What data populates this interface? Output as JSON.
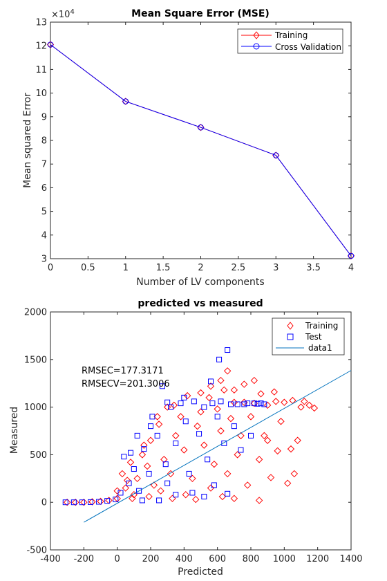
{
  "chart_data": [
    {
      "type": "line",
      "title": "Mean Square Error (MSE)",
      "xlabel": "Number of LV components",
      "ylabel": "Mean squared Error",
      "y_exponent_label": "×10",
      "y_exponent_power": "4",
      "xlim": [
        0,
        4
      ],
      "ylim": [
        3,
        13
      ],
      "xticks": [
        0,
        0.5,
        1,
        1.5,
        2,
        2.5,
        3,
        3.5,
        4
      ],
      "xtick_labels": [
        "0",
        "0.5",
        "1",
        "1.5",
        "2",
        "2.5",
        "3",
        "3.5",
        "4"
      ],
      "yticks": [
        3,
        4,
        5,
        6,
        7,
        8,
        9,
        10,
        11,
        12,
        13
      ],
      "ytick_labels": [
        "3",
        "4",
        "5",
        "6",
        "7",
        "8",
        "9",
        "10",
        "11",
        "12",
        "13"
      ],
      "x": [
        0,
        1,
        2,
        3,
        4
      ],
      "series": [
        {
          "name": "Training",
          "values": [
            12.05,
            9.65,
            8.55,
            7.37,
            3.12
          ],
          "color": "#ff0000",
          "marker": "diamond"
        },
        {
          "name": "Cross Validation",
          "values": [
            12.05,
            9.65,
            8.55,
            7.37,
            3.12
          ],
          "color": "#0000ff",
          "marker": "circle"
        }
      ],
      "grid": false,
      "legend_position": "top-right"
    },
    {
      "type": "scatter",
      "title": "predicted vs measured",
      "xlabel": "Predicted",
      "ylabel": "Measured",
      "xlim": [
        -400,
        1400
      ],
      "ylim": [
        -500,
        2000
      ],
      "xticks": [
        -400,
        -200,
        0,
        200,
        400,
        600,
        800,
        1000,
        1200,
        1400
      ],
      "xtick_labels": [
        "-400",
        "-200",
        "0",
        "200",
        "400",
        "600",
        "800",
        "1000",
        "1200",
        "1400"
      ],
      "yticks": [
        -500,
        0,
        500,
        1000,
        1500,
        2000
      ],
      "ytick_labels": [
        "-500",
        "0",
        "500",
        "1000",
        "1500",
        "2000"
      ],
      "annotations": [
        "RMSEC=177.3171",
        "RMSECV=201.3006"
      ],
      "series": [
        {
          "name": "Training",
          "color": "#ff0000",
          "marker": "diamond",
          "points": [
            [
              -300,
              0
            ],
            [
              -250,
              0
            ],
            [
              -200,
              0
            ],
            [
              -150,
              5
            ],
            [
              -100,
              10
            ],
            [
              -50,
              20
            ],
            [
              0,
              40
            ],
            [
              0,
              120
            ],
            [
              30,
              300
            ],
            [
              50,
              150
            ],
            [
              80,
              420
            ],
            [
              100,
              80
            ],
            [
              120,
              250
            ],
            [
              150,
              500
            ],
            [
              180,
              380
            ],
            [
              200,
              650
            ],
            [
              220,
              180
            ],
            [
              250,
              820
            ],
            [
              280,
              450
            ],
            [
              300,
              1000
            ],
            [
              320,
              300
            ],
            [
              350,
              700
            ],
            [
              380,
              900
            ],
            [
              400,
              550
            ],
            [
              420,
              1120
            ],
            [
              450,
              250
            ],
            [
              480,
              800
            ],
            [
              500,
              950
            ],
            [
              520,
              600
            ],
            [
              550,
              1100
            ],
            [
              580,
              400
            ],
            [
              600,
              980
            ],
            [
              620,
              750
            ],
            [
              640,
              1180
            ],
            [
              660,
              300
            ],
            [
              680,
              880
            ],
            [
              700,
              1050
            ],
            [
              720,
              500
            ],
            [
              740,
              700
            ],
            [
              760,
              1050
            ],
            [
              780,
              180
            ],
            [
              800,
              900
            ],
            [
              820,
              1040
            ],
            [
              850,
              450
            ],
            [
              880,
              700
            ],
            [
              900,
              1020
            ],
            [
              920,
              260
            ],
            [
              950,
              1060
            ],
            [
              980,
              850
            ],
            [
              1000,
              1050
            ],
            [
              1020,
              200
            ],
            [
              1050,
              1070
            ],
            [
              1080,
              650
            ],
            [
              1100,
              1000
            ],
            [
              1120,
              1060
            ],
            [
              1150,
              1020
            ],
            [
              1180,
              990
            ],
            [
              900,
              650
            ],
            [
              960,
              540
            ],
            [
              1040,
              560
            ],
            [
              1060,
              300
            ],
            [
              860,
              1140
            ],
            [
              940,
              1160
            ],
            [
              820,
              1280
            ],
            [
              760,
              1240
            ],
            [
              700,
              1180
            ],
            [
              620,
              1280
            ],
            [
              660,
              1380
            ],
            [
              560,
              1220
            ],
            [
              500,
              1150
            ],
            [
              340,
              1020
            ],
            [
              240,
              900
            ],
            [
              160,
              600
            ],
            [
              60,
              230
            ],
            [
              90,
              40
            ],
            [
              190,
              60
            ],
            [
              260,
              120
            ],
            [
              330,
              40
            ],
            [
              410,
              80
            ],
            [
              470,
              30
            ],
            [
              560,
              150
            ],
            [
              630,
              60
            ],
            [
              700,
              40
            ],
            [
              850,
              20
            ]
          ]
        },
        {
          "name": "Test",
          "color": "#0000ff",
          "marker": "square",
          "points": [
            [
              -310,
              0
            ],
            [
              -260,
              0
            ],
            [
              -210,
              0
            ],
            [
              -160,
              2
            ],
            [
              -110,
              5
            ],
            [
              -60,
              15
            ],
            [
              -10,
              30
            ],
            [
              20,
              100
            ],
            [
              40,
              480
            ],
            [
              70,
              200
            ],
            [
              100,
              350
            ],
            [
              130,
              120
            ],
            [
              160,
              560
            ],
            [
              190,
              300
            ],
            [
              210,
              900
            ],
            [
              240,
              700
            ],
            [
              270,
              1220
            ],
            [
              290,
              400
            ],
            [
              320,
              1000
            ],
            [
              350,
              620
            ],
            [
              380,
              1040
            ],
            [
              410,
              850
            ],
            [
              430,
              300
            ],
            [
              460,
              1060
            ],
            [
              490,
              720
            ],
            [
              520,
              1000
            ],
            [
              540,
              450
            ],
            [
              570,
              1040
            ],
            [
              600,
              900
            ],
            [
              620,
              1060
            ],
            [
              640,
              620
            ],
            [
              660,
              1600
            ],
            [
              680,
              1030
            ],
            [
              700,
              800
            ],
            [
              720,
              1030
            ],
            [
              740,
              550
            ],
            [
              760,
              1030
            ],
            [
              780,
              1040
            ],
            [
              800,
              700
            ],
            [
              820,
              1040
            ],
            [
              840,
              1035
            ],
            [
              860,
              1040
            ],
            [
              880,
              1030
            ],
            [
              610,
              1500
            ],
            [
              560,
              1270
            ],
            [
              400,
              1100
            ],
            [
              300,
              1050
            ],
            [
              200,
              800
            ],
            [
              120,
              700
            ],
            [
              80,
              520
            ],
            [
              350,
              80
            ],
            [
              300,
              200
            ],
            [
              450,
              100
            ],
            [
              520,
              60
            ],
            [
              580,
              180
            ],
            [
              660,
              90
            ],
            [
              250,
              20
            ],
            [
              150,
              20
            ]
          ]
        },
        {
          "name": "data1",
          "color": "#0072bd",
          "marker": "line",
          "line": [
            [
              -200,
              -210
            ],
            [
              1400,
              1385
            ]
          ]
        }
      ],
      "grid": false,
      "legend_position": "top-right"
    }
  ]
}
